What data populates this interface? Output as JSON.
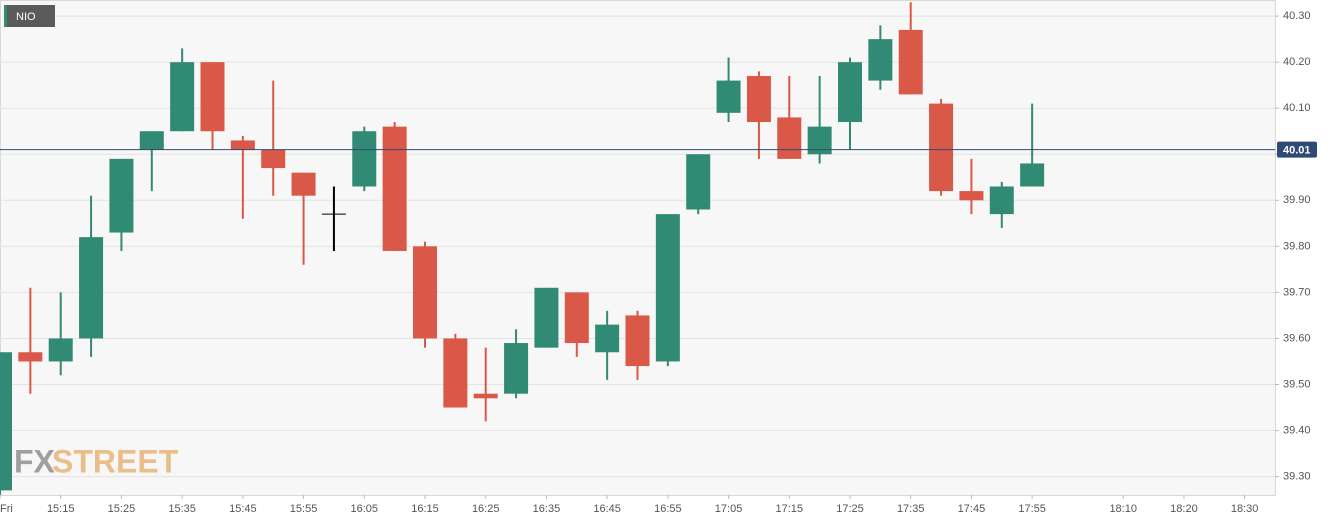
{
  "chart_data": {
    "type": "candlestick",
    "name": "NIO",
    "watermark": [
      "FX",
      "STREET"
    ],
    "x": [
      "15:05",
      "15:10",
      "15:15",
      "15:20",
      "15:25",
      "15:30",
      "15:35",
      "15:40",
      "15:45",
      "15:50",
      "15:55",
      "16:00",
      "16:05",
      "16:10",
      "16:15",
      "16:20",
      "16:25",
      "16:30",
      "16:35",
      "16:40",
      "16:45",
      "16:50",
      "16:55",
      "17:00",
      "17:05",
      "17:10",
      "17:15",
      "17:20",
      "17:25",
      "17:30",
      "17:35",
      "17:40",
      "17:45",
      "17:50",
      "17:55"
    ],
    "open": [
      39.27,
      39.57,
      39.55,
      39.6,
      39.83,
      40.01,
      40.05,
      40.2,
      40.03,
      40.01,
      39.96,
      39.87,
      39.93,
      40.06,
      39.8,
      39.6,
      39.48,
      39.48,
      39.58,
      39.7,
      39.57,
      39.65,
      39.55,
      39.88,
      40.09,
      40.17,
      40.08,
      40.0,
      40.07,
      40.16,
      40.27,
      40.11,
      39.92,
      39.87,
      39.93
    ],
    "high": [
      39.57,
      39.71,
      39.7,
      39.91,
      39.99,
      40.05,
      40.23,
      40.2,
      40.04,
      40.16,
      39.96,
      39.93,
      40.06,
      40.07,
      39.81,
      39.61,
      39.58,
      39.62,
      39.71,
      39.7,
      39.66,
      39.66,
      39.87,
      40.0,
      40.21,
      40.18,
      40.17,
      40.17,
      40.21,
      40.28,
      40.33,
      40.12,
      39.99,
      39.94,
      40.11
    ],
    "low": [
      39.26,
      39.48,
      39.52,
      39.56,
      39.79,
      39.92,
      40.05,
      40.01,
      39.86,
      39.91,
      39.76,
      39.79,
      39.92,
      39.79,
      39.58,
      39.45,
      39.42,
      39.47,
      39.58,
      39.56,
      39.51,
      39.51,
      39.54,
      39.87,
      40.07,
      39.99,
      39.99,
      39.98,
      40.01,
      40.14,
      40.13,
      39.91,
      39.87,
      39.84,
      39.93
    ],
    "close": [
      39.57,
      39.55,
      39.6,
      39.82,
      39.99,
      40.05,
      40.2,
      40.05,
      40.01,
      39.97,
      39.91,
      39.87,
      40.05,
      39.79,
      39.6,
      39.45,
      39.47,
      39.59,
      39.71,
      39.59,
      39.63,
      39.54,
      39.87,
      40.0,
      40.16,
      40.07,
      39.99,
      40.06,
      40.2,
      40.25,
      40.13,
      39.92,
      39.9,
      39.93,
      39.98
    ],
    "colors": {
      "up": "#318a73",
      "down": "#d95847",
      "flat": "#000000"
    },
    "ylim": [
      39.26,
      40.335
    ],
    "yticks": [
      {
        "value": 39.3,
        "label": "39.30"
      },
      {
        "value": 39.4,
        "label": "39.40"
      },
      {
        "value": 39.5,
        "label": "39.50"
      },
      {
        "value": 39.6,
        "label": "39.60"
      },
      {
        "value": 39.7,
        "label": "39.70"
      },
      {
        "value": 39.8,
        "label": "39.80"
      },
      {
        "value": 39.9,
        "label": "39.90"
      },
      {
        "value": 40.0,
        "label": "40.00"
      },
      {
        "value": 40.1,
        "label": "40.10"
      },
      {
        "value": 40.2,
        "label": "40.20"
      },
      {
        "value": 40.3,
        "label": "40.30"
      }
    ],
    "xlim": [
      "15:05",
      "18:35"
    ],
    "xticks": [
      {
        "value": "15:05",
        "label": "Fri"
      },
      "15:15",
      "15:25",
      "15:35",
      "15:45",
      "15:55",
      "16:05",
      "16:15",
      "16:25",
      "16:35",
      "16:45",
      "16:55",
      "17:05",
      "17:15",
      "17:25",
      "17:35",
      "17:45",
      "17:55",
      "18:10",
      "18:20",
      "18:30"
    ],
    "price_line": {
      "value": 40.01,
      "label": "40.01",
      "color": "#2f4a74"
    },
    "grid": true
  }
}
